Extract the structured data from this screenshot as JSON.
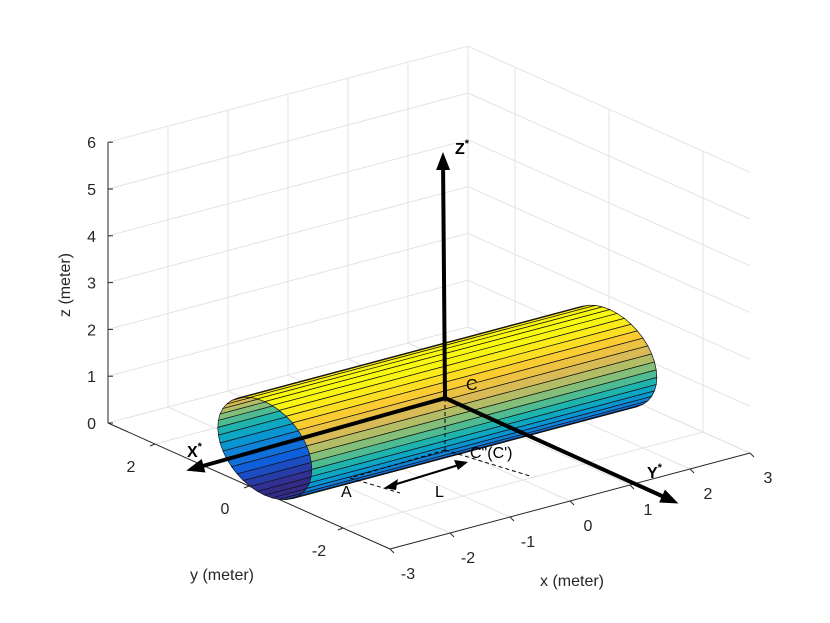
{
  "axes": {
    "x": {
      "label": "x (meter)",
      "lim": [
        -3,
        3
      ],
      "ticks": [
        -3,
        -2,
        -1,
        0,
        1,
        2,
        3
      ]
    },
    "y": {
      "label": "y (meter)",
      "lim": [
        -3,
        3
      ],
      "ticks": [
        -2,
        0,
        2
      ]
    },
    "z": {
      "label": "z (meter)",
      "lim": [
        0,
        6
      ],
      "ticks": [
        0,
        1,
        2,
        3,
        4,
        5,
        6
      ]
    }
  },
  "annotations": {
    "x_star": {
      "base": "X",
      "sup": "*"
    },
    "y_star": {
      "base": "Y",
      "sup": "*"
    },
    "z_star": {
      "base": "Z",
      "sup": "*"
    },
    "c": "C",
    "c_proj": "C\"(C')",
    "a": "A",
    "l": "L"
  }
}
